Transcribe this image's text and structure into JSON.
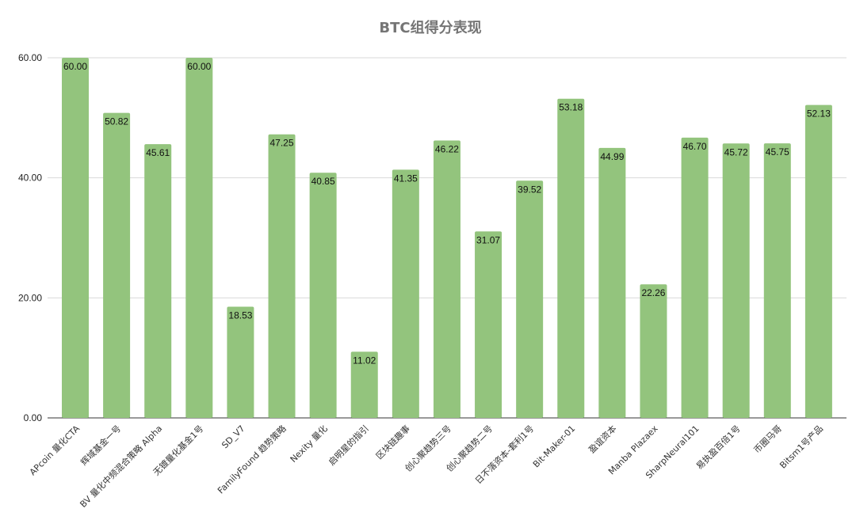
{
  "chart_data": {
    "type": "bar",
    "title": "BTC组得分表现",
    "xlabel": "",
    "ylabel": "",
    "ylim": [
      0,
      60
    ],
    "yticks": [
      "0.00",
      "20.00",
      "40.00",
      "60.00"
    ],
    "grid": true,
    "legend": "none",
    "bar_color": "#93c47d",
    "categories": [
      "APcoin 量化CTA",
      "辉域基金一号",
      "BV 量化中频混合策略 Alpha",
      "无镀量化基金1号",
      "SD_V7",
      "FamilyFound 趋势策略",
      "Nexity 量化",
      "启明星的指引",
      "区块链趣事",
      "创心聚趋势三号",
      "创心聚趋势二号",
      "日不落资本-套利1号",
      "Bit-Maker-01",
      "盈谊资本",
      "Manba Plazaex",
      "SharpNeural101",
      "易执盈百倍1号",
      "币圈马哥",
      "Bitsm1号产品"
    ],
    "values": [
      60.0,
      50.82,
      45.61,
      60.0,
      18.53,
      47.25,
      40.85,
      11.02,
      41.35,
      46.22,
      31.07,
      39.52,
      53.18,
      44.99,
      22.26,
      46.7,
      45.72,
      45.75,
      52.13
    ],
    "value_labels": [
      "60.00",
      "50.82",
      "45.61",
      "60.00",
      "18.53",
      "47.25",
      "40.85",
      "11.02",
      "41.35",
      "46.22",
      "31.07",
      "39.52",
      "53.18",
      "44.99",
      "22.26",
      "46.70",
      "45.72",
      "45.75",
      "52.13"
    ]
  }
}
